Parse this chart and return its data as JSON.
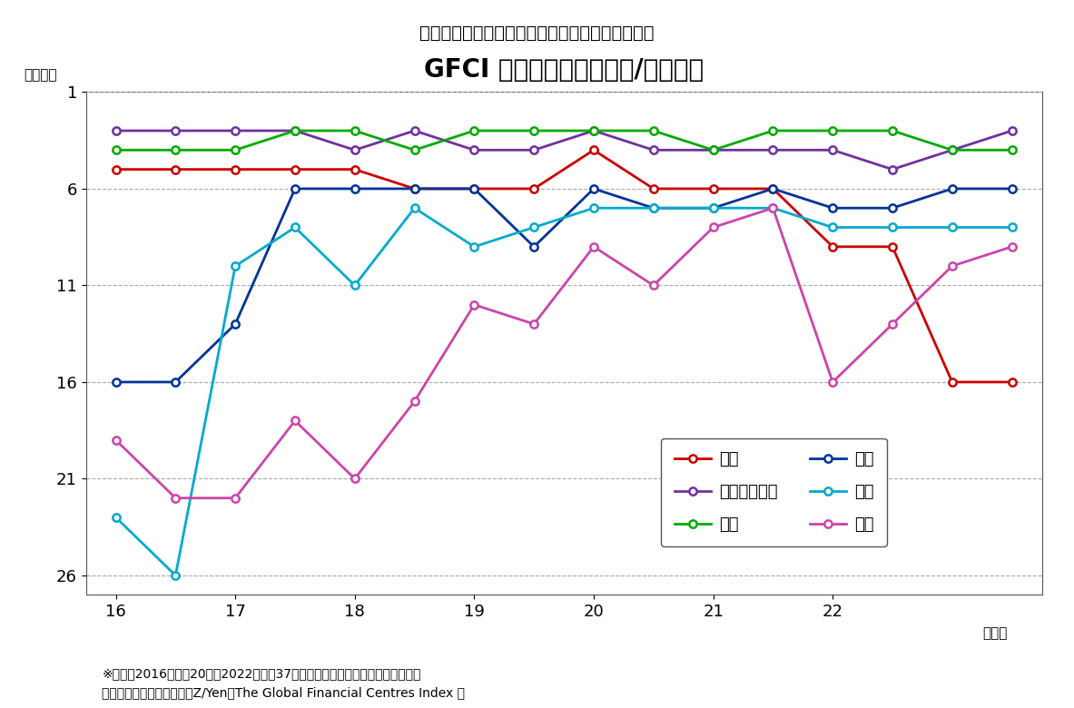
{
  "title_main": "（図表６）国際金融センターインデックス　推移",
  "title_chart": "GFCI ランキング（アジア/太平洋）",
  "ylabel": "（順位）",
  "xlabel": "（年）",
  "note1": "※大阪は2016年上期20位、2022年下期37位であり、ランキングは低下している",
  "note2": "（資料）　英シンクタンクZ/Yen「The Global Financial Centres Index 」",
  "x_labels": [
    "16",
    "17",
    "18",
    "19",
    "20",
    "21",
    "22"
  ],
  "x_tick_positions": [
    0,
    2,
    4,
    6,
    8,
    10,
    12
  ],
  "series": [
    {
      "name": "東京",
      "color": "#cc0000",
      "data": [
        5,
        5,
        5,
        5,
        5,
        6,
        6,
        6,
        4,
        6,
        6,
        6,
        9,
        9,
        16,
        16
      ]
    },
    {
      "name": "シンガポール",
      "color": "#7030a0",
      "data": [
        3,
        3,
        3,
        3,
        4,
        3,
        4,
        4,
        3,
        4,
        4,
        4,
        4,
        5,
        4,
        3
      ]
    },
    {
      "name": "香港",
      "color": "#00aa00",
      "data": [
        4,
        4,
        4,
        3,
        3,
        4,
        3,
        3,
        3,
        3,
        4,
        3,
        3,
        3,
        4,
        4
      ]
    },
    {
      "name": "上海",
      "color": "#003399",
      "data": [
        16,
        16,
        13,
        6,
        6,
        6,
        6,
        9,
        6,
        7,
        7,
        6,
        7,
        7,
        6,
        6
      ]
    },
    {
      "name": "北京",
      "color": "#00aacc",
      "data": [
        23,
        26,
        10,
        8,
        11,
        7,
        9,
        8,
        7,
        7,
        7,
        7,
        8,
        8,
        8,
        8
      ]
    },
    {
      "name": "深圳",
      "color": "#cc44aa",
      "data": [
        19,
        22,
        22,
        18,
        21,
        17,
        12,
        13,
        9,
        11,
        8,
        7,
        16,
        13,
        10,
        9
      ]
    }
  ],
  "ylim": [
    27,
    1
  ],
  "yticks": [
    1,
    6,
    11,
    16,
    21,
    26
  ],
  "background_color": "#ffffff",
  "grid_color": "#aaaaaa",
  "n_points": 16
}
